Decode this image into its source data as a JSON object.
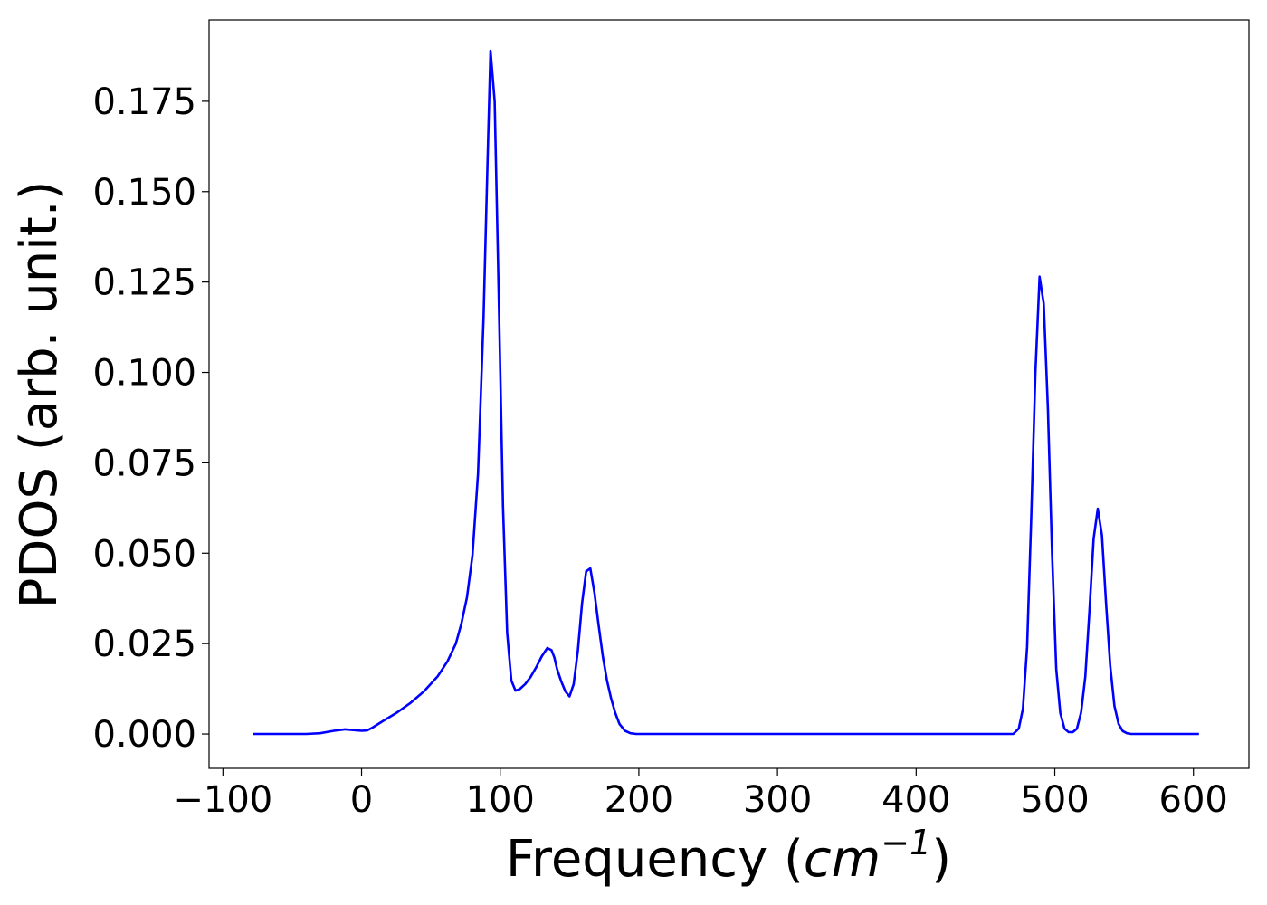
{
  "chart_data": {
    "type": "line",
    "title": "",
    "xlabel": "Frequency (",
    "xlabel_math": "cm",
    "xlabel_exp": "−1",
    "xlabel_close": ")",
    "ylabel": "PDOS (arb. unit.)",
    "xlim": [
      -110,
      640
    ],
    "ylim": [
      -0.0095,
      0.1975
    ],
    "xticks": [
      -100,
      0,
      100,
      200,
      300,
      400,
      500,
      600
    ],
    "xtick_labels": [
      "−100",
      "0",
      "100",
      "200",
      "300",
      "400",
      "500",
      "600"
    ],
    "yticks": [
      0.0,
      0.025,
      0.05,
      0.075,
      0.1,
      0.125,
      0.15,
      0.175
    ],
    "ytick_labels": [
      "0.000",
      "0.025",
      "0.050",
      "0.075",
      "0.100",
      "0.125",
      "0.150",
      "0.175"
    ],
    "grid": false,
    "legend": "none",
    "series": [
      {
        "color": "#0000ff",
        "x": [
          -78,
          -40,
          -30,
          -20,
          -12,
          -6,
          0,
          4,
          8,
          15,
          25,
          35,
          45,
          55,
          62,
          68,
          72,
          76,
          80,
          84,
          88,
          91,
          93,
          96,
          99,
          102,
          105,
          108,
          111,
          114,
          118,
          122,
          126,
          130,
          134,
          137,
          139,
          141,
          144,
          147,
          150,
          153,
          156,
          159,
          162,
          165,
          168,
          171,
          174,
          177,
          180,
          183,
          186,
          190,
          194,
          198,
          202,
          206,
          210,
          215,
          220,
          300,
          400,
          470,
          474,
          477,
          480,
          483,
          486,
          489,
          492,
          495,
          498,
          501,
          504,
          507,
          510,
          513,
          516,
          519,
          522,
          525,
          528,
          531,
          534,
          537,
          540,
          543,
          546,
          549,
          552,
          555,
          558,
          561,
          565,
          570,
          604
        ],
        "y": [
          0.0,
          0.0,
          0.0002,
          0.0009,
          0.0013,
          0.0011,
          0.0009,
          0.001,
          0.0018,
          0.0035,
          0.0058,
          0.0085,
          0.0118,
          0.016,
          0.0201,
          0.025,
          0.0305,
          0.0378,
          0.0495,
          0.072,
          0.115,
          0.16,
          0.189,
          0.175,
          0.12,
          0.063,
          0.028,
          0.0148,
          0.012,
          0.0124,
          0.0138,
          0.0158,
          0.0185,
          0.0215,
          0.0238,
          0.0232,
          0.0212,
          0.018,
          0.0146,
          0.0118,
          0.0104,
          0.0138,
          0.023,
          0.036,
          0.045,
          0.0458,
          0.039,
          0.03,
          0.0215,
          0.0148,
          0.0098,
          0.0058,
          0.0028,
          0.0009,
          0.0002,
          0.0,
          0.0,
          0.0,
          0.0,
          0.0,
          0.0,
          0.0,
          0.0,
          0.0,
          0.0015,
          0.007,
          0.024,
          0.06,
          0.1,
          0.1265,
          0.119,
          0.09,
          0.05,
          0.018,
          0.0058,
          0.0015,
          0.0005,
          0.0005,
          0.0015,
          0.006,
          0.0158,
          0.034,
          0.054,
          0.0623,
          0.055,
          0.036,
          0.0188,
          0.0078,
          0.0028,
          0.0008,
          0.0002,
          0.0,
          0.0,
          0.0,
          0.0,
          0.0,
          0.0
        ]
      }
    ]
  }
}
